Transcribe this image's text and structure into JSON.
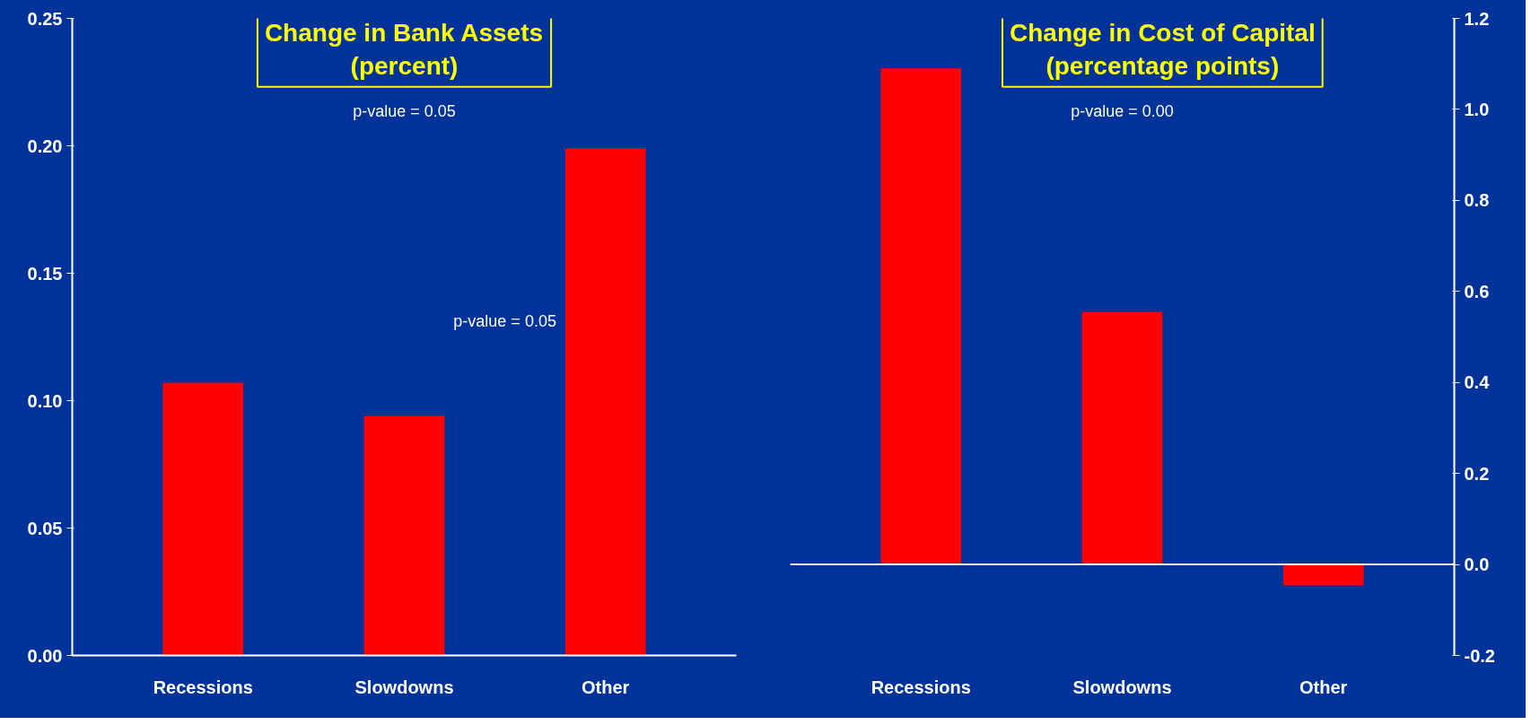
{
  "chart_data": [
    {
      "type": "bar",
      "title": "Change in Bank Assets\n(percent)",
      "categories": [
        "Recessions",
        "Slowdowns",
        "Other"
      ],
      "values": [
        0.107,
        0.094,
        0.199
      ],
      "color": "#ff0000",
      "ylim": [
        0,
        0.25
      ],
      "yticks": [
        {
          "value": 0,
          "label": "0.00"
        },
        0.05,
        {
          "value": 0.1,
          "label": "0.10"
        },
        0.15,
        {
          "value": 0.2,
          "label": "0.20"
        },
        0.25
      ],
      "grid": false,
      "annotations": [
        "p-value = 0.05",
        "p-value = 0.05"
      ]
    },
    {
      "type": "bar",
      "title": "Change in Cost of Capital\n(percentage points)",
      "categories": [
        "Recessions",
        "Slowdowns",
        "Other"
      ],
      "values": [
        1.09,
        0.555,
        -0.046
      ],
      "color": "#ff0000",
      "ylim": [
        -0.2,
        1.2
      ],
      "yticks": [
        -0.2,
        {
          "value": 0,
          "label": "0.0"
        },
        0.2,
        0.4,
        0.6,
        0.8,
        {
          "value": 1,
          "label": "1.0"
        },
        1.2
      ],
      "grid": false,
      "ref_lines": [
        {
          "axis": "y",
          "value": 0,
          "color": "#ffffff"
        }
      ],
      "annotations": [
        "p-value = 0.00"
      ]
    }
  ]
}
